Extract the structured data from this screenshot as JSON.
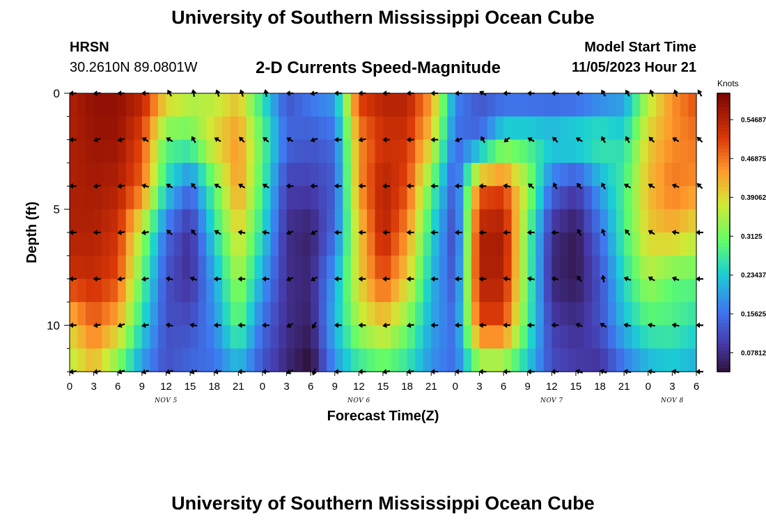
{
  "header": {
    "title": "University of Southern Mississippi Ocean Cube",
    "station_code": "HRSN",
    "station_coords": "30.2610N  89.0801W",
    "plot_title": "2-D Currents Speed-Magnitude",
    "model_start_label": "Model Start Time",
    "model_start_time": "11/05/2023 Hour 21"
  },
  "footer": {
    "title": "University of Southern Mississippi Ocean Cube"
  },
  "chart_data": {
    "type": "heatmap",
    "title": "2-D Currents Speed-Magnitude",
    "xlabel": "Forecast Time(Z)",
    "ylabel": "Depth (ft)",
    "x_range_hours": [
      0,
      78
    ],
    "x_start": "Nov 5 00Z",
    "ylim": [
      0,
      12
    ],
    "y_inverted": true,
    "y_ticks": [
      0,
      5,
      10
    ],
    "x_tick_labels": [
      "0",
      "3",
      "6",
      "9",
      "12",
      "15",
      "18",
      "21",
      "0",
      "3",
      "6",
      "9",
      "12",
      "15",
      "18",
      "21",
      "0",
      "3",
      "6",
      "9",
      "12",
      "15",
      "18",
      "21",
      "0",
      "3",
      "6"
    ],
    "date_labels": [
      {
        "label": "NOV 5",
        "hour": 12
      },
      {
        "label": "NOV 6",
        "hour": 36
      },
      {
        "label": "NOV 7",
        "hour": 60
      },
      {
        "label": "NOV 8",
        "hour": 75
      }
    ],
    "colorbar": {
      "label": "Knots",
      "min": 0.04,
      "max": 0.6,
      "ticks": [
        0.07812,
        0.15625,
        0.23437,
        0.3125,
        0.39062,
        0.46875,
        0.54687
      ]
    },
    "time_hours": [
      0,
      3,
      6,
      9,
      12,
      15,
      18,
      21,
      24,
      27,
      30,
      33,
      36,
      39,
      42,
      45,
      48,
      51,
      54,
      57,
      60,
      63,
      66,
      69,
      72,
      75,
      78
    ],
    "depths_ft": [
      0,
      2,
      4,
      6,
      8,
      10,
      12
    ],
    "speed_knots": [
      [
        0.55,
        0.58,
        0.58,
        0.55,
        0.42,
        0.37,
        0.35,
        0.4,
        0.25,
        0.12,
        0.17,
        0.2,
        0.52,
        0.55,
        0.55,
        0.45,
        0.18,
        0.12,
        0.12,
        0.12,
        0.12,
        0.12,
        0.15,
        0.18,
        0.35,
        0.45,
        0.5
      ],
      [
        0.55,
        0.57,
        0.57,
        0.5,
        0.3,
        0.3,
        0.4,
        0.45,
        0.3,
        0.15,
        0.13,
        0.15,
        0.45,
        0.52,
        0.52,
        0.4,
        0.15,
        0.15,
        0.27,
        0.27,
        0.25,
        0.27,
        0.28,
        0.25,
        0.4,
        0.45,
        0.47
      ],
      [
        0.55,
        0.56,
        0.55,
        0.48,
        0.25,
        0.15,
        0.3,
        0.45,
        0.28,
        0.1,
        0.1,
        0.13,
        0.45,
        0.55,
        0.5,
        0.3,
        0.12,
        0.48,
        0.5,
        0.35,
        0.15,
        0.1,
        0.2,
        0.28,
        0.42,
        0.47,
        0.45
      ],
      [
        0.55,
        0.55,
        0.52,
        0.35,
        0.15,
        0.08,
        0.25,
        0.4,
        0.25,
        0.08,
        0.06,
        0.15,
        0.4,
        0.55,
        0.45,
        0.25,
        0.1,
        0.55,
        0.56,
        0.3,
        0.08,
        0.05,
        0.15,
        0.28,
        0.4,
        0.42,
        0.38
      ],
      [
        0.52,
        0.53,
        0.5,
        0.3,
        0.12,
        0.08,
        0.2,
        0.35,
        0.2,
        0.08,
        0.07,
        0.2,
        0.4,
        0.5,
        0.4,
        0.22,
        0.12,
        0.55,
        0.55,
        0.3,
        0.07,
        0.05,
        0.12,
        0.25,
        0.35,
        0.3,
        0.3
      ],
      [
        0.4,
        0.48,
        0.42,
        0.25,
        0.12,
        0.12,
        0.18,
        0.3,
        0.15,
        0.08,
        0.06,
        0.22,
        0.35,
        0.4,
        0.32,
        0.2,
        0.15,
        0.5,
        0.5,
        0.28,
        0.1,
        0.08,
        0.12,
        0.22,
        0.28,
        0.28,
        0.25
      ],
      [
        0.35,
        0.4,
        0.3,
        0.18,
        0.12,
        0.15,
        0.15,
        0.2,
        0.12,
        0.07,
        0.03,
        0.18,
        0.25,
        0.28,
        0.25,
        0.18,
        0.15,
        0.3,
        0.3,
        0.22,
        0.12,
        0.1,
        0.08,
        0.15,
        0.2,
        0.22,
        0.2
      ]
    ],
    "arrow_directions_deg": [
      [
        -90,
        -95,
        -90,
        -90,
        -30,
        -10,
        -20,
        -20,
        -10,
        -90,
        -100,
        -90,
        -90,
        -90,
        -90,
        -90,
        -90,
        -60,
        -90,
        -90,
        -90,
        -90,
        -30,
        -30,
        -20,
        -20,
        -30
      ],
      [
        -90,
        -110,
        -105,
        -60,
        -60,
        -30,
        -60,
        -45,
        -50,
        -60,
        -110,
        -90,
        -100,
        -90,
        -90,
        -90,
        -110,
        -30,
        -130,
        -60,
        -45,
        -60,
        -30,
        -30,
        -45,
        -60,
        -45
      ],
      [
        -90,
        -100,
        -100,
        -75,
        -60,
        -40,
        -60,
        -60,
        -60,
        -90,
        -90,
        -90,
        -90,
        -90,
        -90,
        -90,
        -90,
        -90,
        -80,
        -50,
        -30,
        -40,
        -30,
        -60,
        -60,
        -70,
        -45
      ],
      [
        -90,
        -90,
        -100,
        -100,
        -50,
        -40,
        -60,
        -80,
        -80,
        -110,
        -120,
        -90,
        -90,
        -90,
        -90,
        -90,
        -90,
        -90,
        -90,
        -90,
        -90,
        -30,
        -20,
        -40,
        -60,
        -80,
        -90
      ],
      [
        -90,
        -90,
        -100,
        -100,
        -80,
        -70,
        -90,
        -90,
        -90,
        -110,
        -120,
        -90,
        -90,
        -90,
        -90,
        -90,
        -90,
        -90,
        -80,
        -80,
        -80,
        -40,
        -10,
        -70,
        -60,
        -70,
        -90
      ],
      [
        -90,
        -100,
        -110,
        -100,
        -80,
        -80,
        -90,
        -90,
        -90,
        -120,
        -150,
        -90,
        -90,
        -100,
        -100,
        -90,
        -90,
        -90,
        -90,
        -90,
        -90,
        -70,
        -60,
        -80,
        -80,
        -80,
        -90
      ],
      [
        -100,
        -100,
        -110,
        -110,
        -110,
        -110,
        -100,
        -90,
        -90,
        -120,
        -160,
        -90,
        -90,
        -100,
        -100,
        -90,
        -90,
        -90,
        -90,
        -90,
        -90,
        -70,
        -70,
        -80,
        -80,
        -80,
        -90
      ]
    ]
  }
}
